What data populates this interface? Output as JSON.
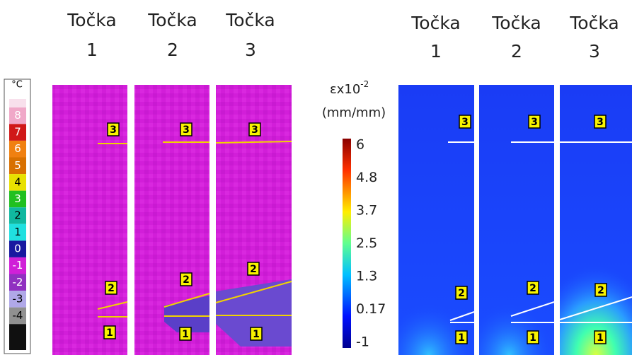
{
  "thermal_headers": [
    {
      "word": "Točka",
      "number": "1"
    },
    {
      "word": "Točka",
      "number": "2"
    },
    {
      "word": "Točka",
      "number": "3"
    }
  ],
  "strain_headers": [
    {
      "word": "Točka",
      "number": "1"
    },
    {
      "word": "Točka",
      "number": "2"
    },
    {
      "word": "Točka",
      "number": "3"
    }
  ],
  "temperature_scale": {
    "unit": "°C",
    "labels": [
      "8",
      "7",
      "6",
      "5",
      "4",
      "3",
      "2",
      "1",
      "0",
      "-1",
      "-2",
      "-3",
      "-4"
    ]
  },
  "strain_scale": {
    "title": "εx10",
    "exponent": "-2",
    "unit": "(mm/mm)",
    "labels": [
      "6",
      "4.8",
      "3.7",
      "2.5",
      "1.3",
      "0.17",
      "-1"
    ]
  },
  "markers": [
    "1",
    "2",
    "3"
  ]
}
